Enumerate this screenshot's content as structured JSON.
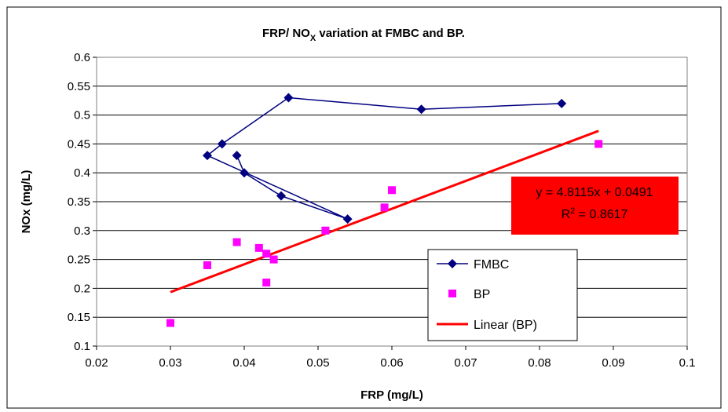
{
  "chart_data": {
    "type": "scatter",
    "title": {
      "main": "FRP/ NO",
      "sub": "X",
      "rest": " variation at FMBC and BP."
    },
    "xlabel": "FRP (mg/L)",
    "ylabel": "NOx (mg/L)",
    "xlim": [
      0.02,
      0.1
    ],
    "ylim": [
      0.1,
      0.6
    ],
    "x_ticks": [
      "0.02",
      "0.03",
      "0.04",
      "0.05",
      "0.06",
      "0.07",
      "0.08",
      "0.09",
      "0.1"
    ],
    "y_ticks": [
      "0.1",
      "0.15",
      "0.2",
      "0.25",
      "0.3",
      "0.35",
      "0.4",
      "0.45",
      "0.5",
      "0.55",
      "0.6"
    ],
    "grid": "horizontal",
    "legend_placement": "lower-right",
    "series": [
      {
        "name": "FMBC",
        "style": "line-with-diamond-markers",
        "color": "#000080",
        "points": [
          [
            0.035,
            0.43
          ],
          [
            0.037,
            0.45
          ],
          [
            0.039,
            0.43
          ],
          [
            0.04,
            0.4
          ],
          [
            0.045,
            0.36
          ],
          [
            0.054,
            0.32
          ],
          [
            0.046,
            0.53
          ],
          [
            0.064,
            0.51
          ],
          [
            0.083,
            0.52
          ]
        ],
        "path_order": [
          2,
          3,
          4,
          5,
          0,
          1,
          6,
          7,
          8
        ]
      },
      {
        "name": "BP",
        "style": "square-markers",
        "color": "#ff00ff",
        "points": [
          [
            0.03,
            0.14
          ],
          [
            0.035,
            0.24
          ],
          [
            0.039,
            0.28
          ],
          [
            0.042,
            0.27
          ],
          [
            0.043,
            0.26
          ],
          [
            0.044,
            0.25
          ],
          [
            0.043,
            0.21
          ],
          [
            0.051,
            0.3
          ],
          [
            0.059,
            0.34
          ],
          [
            0.06,
            0.37
          ],
          [
            0.088,
            0.45
          ]
        ]
      },
      {
        "name": "Linear (BP)",
        "style": "trendline",
        "color": "#ff0000",
        "slope": 4.8115,
        "intercept": 0.0491,
        "x_range": [
          0.03,
          0.088
        ]
      }
    ],
    "trendline_label": {
      "equation": "y = 4.8115x + 0.0491",
      "r2_prefix": "R",
      "r2_sup": "2",
      "r2_value": " = 0.8617",
      "background": "#ff0000"
    }
  }
}
